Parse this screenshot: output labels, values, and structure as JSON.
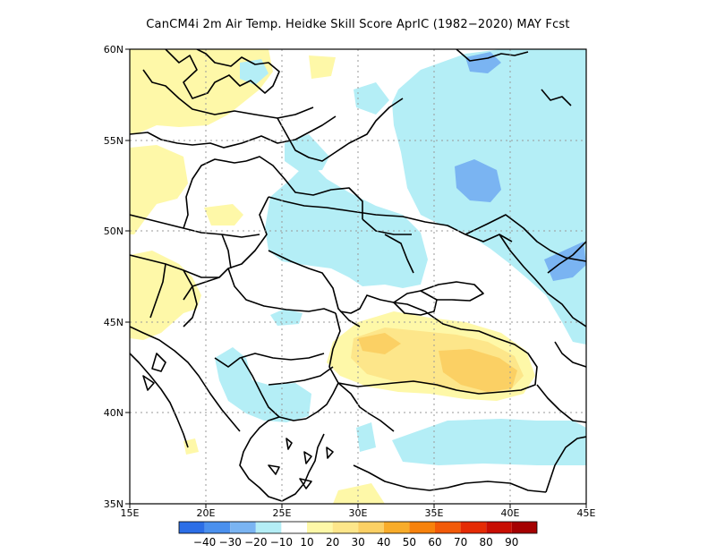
{
  "title": "CanCM4i  2m Air Temp. Heidke Skill Score AprIC (1982−2020) MAY Fcst",
  "colors": {
    "neg40": "#2c6ee6",
    "neg30": "#4a90ee",
    "neg20": "#7ab4f2",
    "neg10": "#b4eef6",
    "zero": "#ffffff",
    "pos10": "#fef8a8",
    "pos20": "#fde68a",
    "pos30": "#fbd064",
    "pos40": "#f8ac2a",
    "pos50": "#f7820c",
    "pos60": "#f25a08",
    "pos70": "#e52b04",
    "pos80": "#c80e02",
    "pos90": "#a50101",
    "grid": "#9a9a9a",
    "coast": "#000000"
  },
  "map": {
    "lon_range": [
      15,
      45
    ],
    "lat_range": [
      35,
      60
    ],
    "lon_ticks": [
      "15E",
      "20E",
      "25E",
      "30E",
      "35E",
      "40E",
      "45E"
    ],
    "lat_ticks": [
      "35N",
      "40N",
      "45N",
      "50N",
      "55N",
      "60N"
    ]
  },
  "colorbar": {
    "labels": [
      "−40",
      "−30",
      "−20",
      "−10",
      "10",
      "20",
      "30",
      "40",
      "50",
      "60",
      "70",
      "80",
      "90"
    ]
  }
}
